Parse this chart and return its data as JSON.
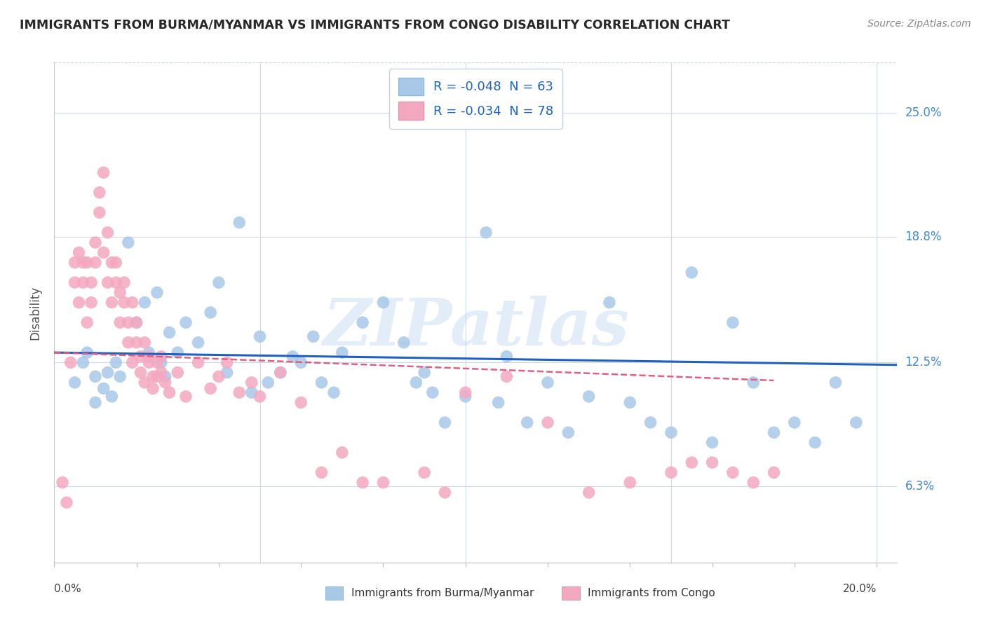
{
  "title": "IMMIGRANTS FROM BURMA/MYANMAR VS IMMIGRANTS FROM CONGO DISABILITY CORRELATION CHART",
  "source": "Source: ZipAtlas.com",
  "ylabel": "Disability",
  "xlim": [
    0.0,
    0.205
  ],
  "ylim": [
    0.025,
    0.275
  ],
  "ytick_labels": [
    "6.3%",
    "12.5%",
    "18.8%",
    "25.0%"
  ],
  "ytick_values": [
    0.063,
    0.125,
    0.188,
    0.25
  ],
  "legend_entry1": "R = -0.048  N = 63",
  "legend_entry2": "R = -0.034  N = 78",
  "legend_label1": "Immigrants from Burma/Myanmar",
  "legend_label2": "Immigrants from Congo",
  "watermark": "ZIPatlas",
  "blue_scatter_x": [
    0.005,
    0.007,
    0.008,
    0.01,
    0.01,
    0.012,
    0.013,
    0.014,
    0.015,
    0.016,
    0.018,
    0.02,
    0.022,
    0.023,
    0.025,
    0.026,
    0.027,
    0.028,
    0.03,
    0.032,
    0.035,
    0.038,
    0.04,
    0.042,
    0.045,
    0.048,
    0.05,
    0.052,
    0.055,
    0.058,
    0.06,
    0.063,
    0.065,
    0.068,
    0.07,
    0.075,
    0.08,
    0.085,
    0.088,
    0.09,
    0.092,
    0.095,
    0.1,
    0.105,
    0.108,
    0.11,
    0.115,
    0.12,
    0.125,
    0.13,
    0.135,
    0.14,
    0.145,
    0.15,
    0.155,
    0.16,
    0.165,
    0.17,
    0.175,
    0.18,
    0.185,
    0.19,
    0.195
  ],
  "blue_scatter_y": [
    0.115,
    0.125,
    0.13,
    0.105,
    0.118,
    0.112,
    0.12,
    0.108,
    0.125,
    0.118,
    0.185,
    0.145,
    0.155,
    0.13,
    0.16,
    0.125,
    0.118,
    0.14,
    0.13,
    0.145,
    0.135,
    0.15,
    0.165,
    0.12,
    0.195,
    0.11,
    0.138,
    0.115,
    0.12,
    0.128,
    0.125,
    0.138,
    0.115,
    0.11,
    0.13,
    0.145,
    0.155,
    0.135,
    0.115,
    0.12,
    0.11,
    0.095,
    0.108,
    0.19,
    0.105,
    0.128,
    0.095,
    0.115,
    0.09,
    0.108,
    0.155,
    0.105,
    0.095,
    0.09,
    0.17,
    0.085,
    0.145,
    0.115,
    0.09,
    0.095,
    0.085,
    0.115,
    0.095
  ],
  "pink_scatter_x": [
    0.002,
    0.003,
    0.004,
    0.005,
    0.005,
    0.006,
    0.006,
    0.007,
    0.007,
    0.008,
    0.008,
    0.009,
    0.009,
    0.01,
    0.01,
    0.011,
    0.011,
    0.012,
    0.012,
    0.013,
    0.013,
    0.014,
    0.014,
    0.015,
    0.015,
    0.016,
    0.016,
    0.017,
    0.017,
    0.018,
    0.018,
    0.019,
    0.019,
    0.02,
    0.02,
    0.021,
    0.021,
    0.022,
    0.022,
    0.023,
    0.023,
    0.024,
    0.024,
    0.025,
    0.025,
    0.026,
    0.026,
    0.027,
    0.028,
    0.03,
    0.032,
    0.035,
    0.038,
    0.04,
    0.042,
    0.045,
    0.048,
    0.05,
    0.055,
    0.06,
    0.065,
    0.07,
    0.075,
    0.08,
    0.09,
    0.095,
    0.1,
    0.11,
    0.12,
    0.13,
    0.14,
    0.15,
    0.155,
    0.16,
    0.165,
    0.17,
    0.175
  ],
  "pink_scatter_y": [
    0.065,
    0.055,
    0.125,
    0.165,
    0.175,
    0.18,
    0.155,
    0.175,
    0.165,
    0.145,
    0.175,
    0.155,
    0.165,
    0.175,
    0.185,
    0.2,
    0.21,
    0.22,
    0.18,
    0.165,
    0.19,
    0.175,
    0.155,
    0.165,
    0.175,
    0.16,
    0.145,
    0.155,
    0.165,
    0.135,
    0.145,
    0.155,
    0.125,
    0.135,
    0.145,
    0.128,
    0.12,
    0.135,
    0.115,
    0.125,
    0.128,
    0.118,
    0.112,
    0.125,
    0.118,
    0.128,
    0.12,
    0.115,
    0.11,
    0.12,
    0.108,
    0.125,
    0.112,
    0.118,
    0.125,
    0.11,
    0.115,
    0.108,
    0.12,
    0.105,
    0.07,
    0.08,
    0.065,
    0.065,
    0.07,
    0.06,
    0.11,
    0.118,
    0.095,
    0.06,
    0.065,
    0.07,
    0.075,
    0.075,
    0.07,
    0.065,
    0.07
  ],
  "blue_line_x": [
    0.0,
    0.205
  ],
  "blue_line_y": [
    0.13,
    0.1238
  ],
  "pink_line_x": [
    0.0,
    0.175
  ],
  "pink_line_y": [
    0.13,
    0.116
  ],
  "blue_scatter_color": "#a8c8e8",
  "pink_scatter_color": "#f4a8c0",
  "blue_line_color": "#2060c0",
  "pink_line_color": "#e06080",
  "grid_color": "#d0d8e8",
  "title_color": "#282828",
  "axis_label_color": "#4488cc",
  "source_color": "#888888",
  "background_color": "#ffffff"
}
